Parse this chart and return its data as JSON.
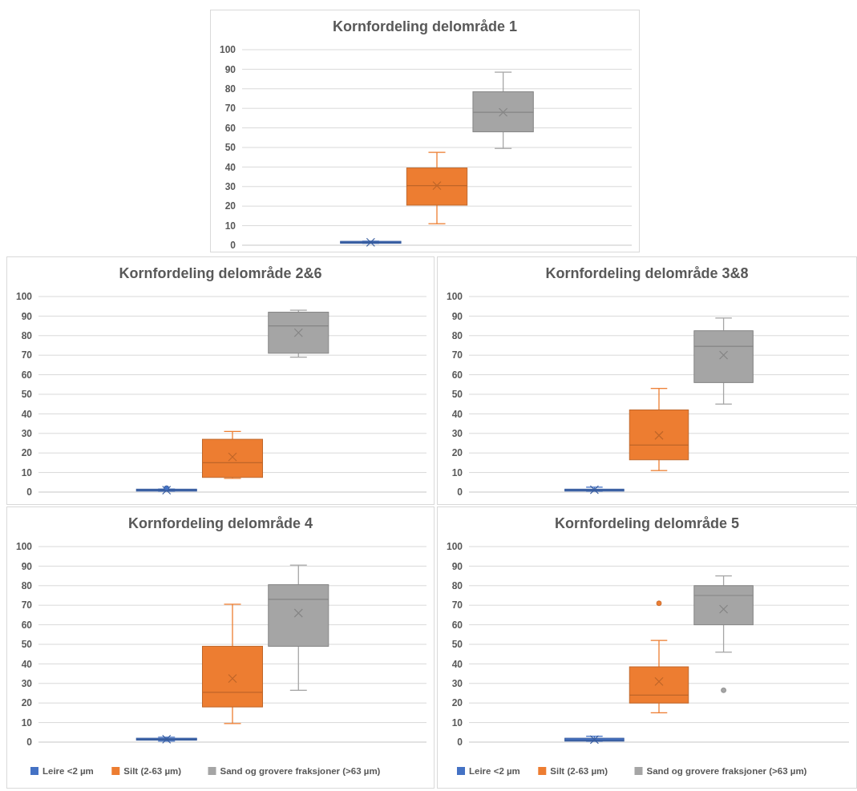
{
  "chart_data": [
    {
      "type": "box",
      "title": "Kornfordeling delområde 1",
      "categories": [
        null
      ],
      "ylim": [
        0,
        100
      ],
      "yticks": [
        0,
        10,
        20,
        30,
        40,
        50,
        60,
        70,
        80,
        90,
        100
      ],
      "grid": "y",
      "legend": false,
      "series": [
        {
          "color": "#4472c4",
          "boxes": [
            {
              "low": 1,
              "q1": 1,
              "median": 1.5,
              "q3": 2,
              "high": 2,
              "mean": 1.5
            }
          ]
        },
        {
          "color": "#ed7d31",
          "boxes": [
            {
              "low": 11,
              "q1": 20.5,
              "median": 30.5,
              "q3": 39.5,
              "high": 47.5,
              "mean": 30.5
            }
          ]
        },
        {
          "color": "#a5a5a5",
          "boxes": [
            {
              "low": 49.5,
              "q1": 58,
              "median": 68,
              "q3": 78.5,
              "high": 88.5,
              "mean": 68
            }
          ]
        }
      ]
    },
    {
      "type": "box",
      "title": "Kornfordeling delområde 2&6",
      "categories": [
        null
      ],
      "ylim": [
        0,
        100
      ],
      "yticks": [
        0,
        10,
        20,
        30,
        40,
        50,
        60,
        70,
        80,
        90,
        100
      ],
      "grid": "y",
      "legend": false,
      "series": [
        {
          "color": "#4472c4",
          "boxes": [
            {
              "low": 0.5,
              "q1": 0.5,
              "median": 1,
              "q3": 1.5,
              "high": 1.5,
              "mean": 1,
              "outliers": [
                2
              ]
            }
          ]
        },
        {
          "color": "#ed7d31",
          "boxes": [
            {
              "low": 7,
              "q1": 7.5,
              "median": 15,
              "q3": 27,
              "high": 31,
              "mean": 18
            }
          ]
        },
        {
          "color": "#a5a5a5",
          "boxes": [
            {
              "low": 69,
              "q1": 71,
              "median": 85,
              "q3": 92,
              "high": 93,
              "mean": 81.5
            }
          ]
        }
      ]
    },
    {
      "type": "box",
      "title": "Kornfordeling delområde 3&8",
      "categories": [
        null
      ],
      "ylim": [
        0,
        100
      ],
      "yticks": [
        0,
        10,
        20,
        30,
        40,
        50,
        60,
        70,
        80,
        90,
        100
      ],
      "grid": "y",
      "legend": false,
      "series": [
        {
          "color": "#4472c4",
          "boxes": [
            {
              "low": 0.5,
              "q1": 0.5,
              "median": 1,
              "q3": 1.5,
              "high": 2.5,
              "mean": 1.2
            }
          ]
        },
        {
          "color": "#ed7d31",
          "boxes": [
            {
              "low": 11,
              "q1": 16.5,
              "median": 24,
              "q3": 42,
              "high": 53,
              "mean": 29
            }
          ]
        },
        {
          "color": "#a5a5a5",
          "boxes": [
            {
              "low": 45,
              "q1": 56,
              "median": 74.5,
              "q3": 82.5,
              "high": 89,
              "mean": 70
            }
          ]
        }
      ]
    },
    {
      "type": "box",
      "title": "Kornfordeling delområde 4",
      "categories": [
        null
      ],
      "ylim": [
        0,
        100
      ],
      "yticks": [
        0,
        10,
        20,
        30,
        40,
        50,
        60,
        70,
        80,
        90,
        100
      ],
      "grid": "y",
      "legend": "bottom",
      "series": [
        {
          "name": "Leire <2 µm",
          "color": "#4472c4",
          "boxes": [
            {
              "low": 0.5,
              "q1": 1,
              "median": 1.5,
              "q3": 2,
              "high": 2.5,
              "mean": 1.5
            }
          ]
        },
        {
          "name": "Silt (2-63 µm)",
          "color": "#ed7d31",
          "boxes": [
            {
              "low": 9.5,
              "q1": 18,
              "median": 25.5,
              "q3": 49,
              "high": 70.5,
              "mean": 32.5
            }
          ]
        },
        {
          "name": "Sand og grovere fraksjoner (>63 µm)",
          "color": "#a5a5a5",
          "boxes": [
            {
              "low": 26.5,
              "q1": 49,
              "median": 73,
              "q3": 80.5,
              "high": 90.5,
              "mean": 66
            }
          ]
        }
      ]
    },
    {
      "type": "box",
      "title": "Kornfordeling delområde 5",
      "categories": [
        null
      ],
      "ylim": [
        0,
        100
      ],
      "yticks": [
        0,
        10,
        20,
        30,
        40,
        50,
        60,
        70,
        80,
        90,
        100
      ],
      "grid": "y",
      "legend": "bottom",
      "series": [
        {
          "name": "Leire <2 µm",
          "color": "#4472c4",
          "boxes": [
            {
              "low": 0.5,
              "q1": 0.5,
              "median": 1,
              "q3": 2,
              "high": 3,
              "mean": 1.3
            }
          ]
        },
        {
          "name": "Silt (2-63 µm)",
          "color": "#ed7d31",
          "boxes": [
            {
              "low": 15,
              "q1": 20,
              "median": 24,
              "q3": 38.5,
              "high": 52,
              "mean": 31,
              "outliers": [
                71
              ]
            }
          ]
        },
        {
          "name": "Sand og grovere fraksjoner (>63 µm)",
          "color": "#a5a5a5",
          "boxes": [
            {
              "low": 46,
              "q1": 60,
              "median": 75,
              "q3": 80,
              "high": 85,
              "mean": 68,
              "outliers": [
                26.5
              ]
            }
          ]
        }
      ]
    }
  ]
}
